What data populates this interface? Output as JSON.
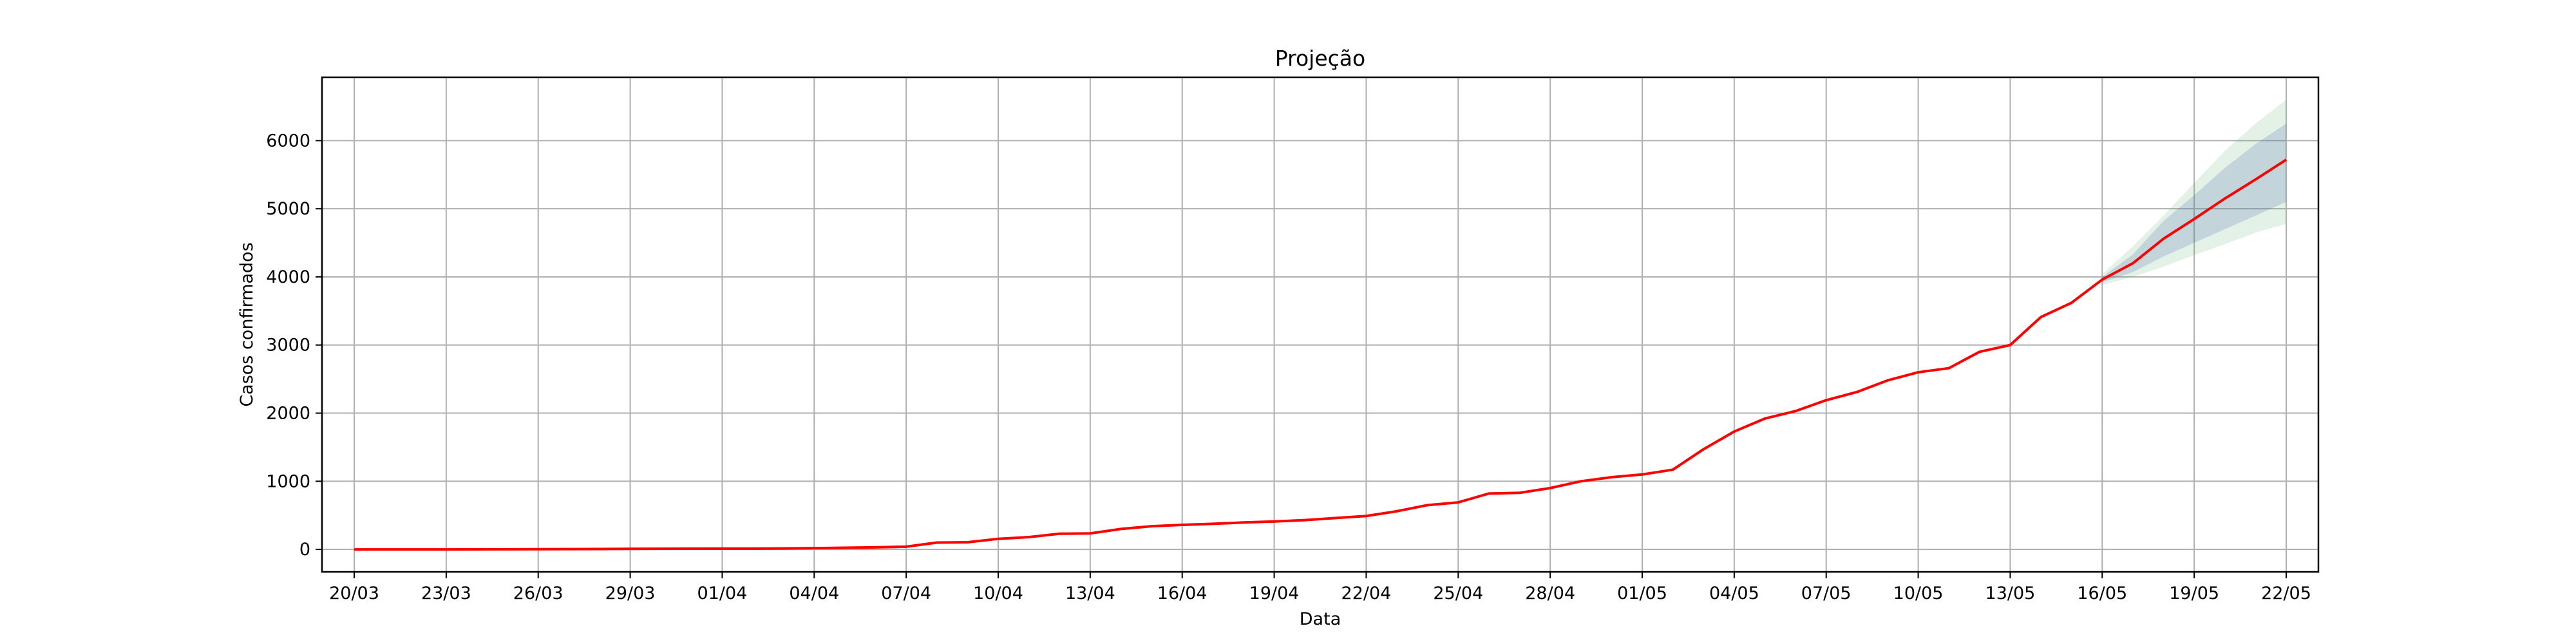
{
  "chart_data": {
    "type": "line",
    "title": "Projeção",
    "xlabel": "Data",
    "ylabel": "Casos confirmados",
    "grid": true,
    "legend": "none",
    "x_range_days": [
      -1.05,
      64.05
    ],
    "ylim": [
      -330,
      6930
    ],
    "x_tick_labels": [
      "20/03",
      "23/03",
      "26/03",
      "29/03",
      "01/04",
      "04/04",
      "07/04",
      "10/04",
      "13/04",
      "16/04",
      "19/04",
      "22/04",
      "25/04",
      "28/04",
      "01/05",
      "04/05",
      "07/05",
      "10/05",
      "13/05",
      "16/05",
      "19/05",
      "22/05"
    ],
    "y_ticks": [
      0,
      1000,
      2000,
      3000,
      4000,
      5000,
      6000
    ],
    "colors": {
      "line": "#ff0000",
      "band_80": "#4c72b0",
      "band_95": "#55a868",
      "grid": "#b0b0b0"
    },
    "series": [
      {
        "dates": [
          "20/03",
          "21/03",
          "22/03",
          "23/03",
          "24/03",
          "25/03",
          "26/03",
          "27/03",
          "28/03",
          "29/03",
          "30/03",
          "31/03",
          "01/04",
          "02/04",
          "03/04",
          "04/04",
          "05/04",
          "06/04",
          "07/04",
          "08/04",
          "09/04",
          "10/04",
          "11/04",
          "12/04",
          "13/04",
          "14/04",
          "15/04",
          "16/04",
          "17/04",
          "18/04",
          "19/04",
          "20/04",
          "21/04",
          "22/04",
          "23/04",
          "24/04",
          "25/04",
          "26/04",
          "27/04",
          "28/04",
          "29/04",
          "30/04",
          "01/05",
          "02/05",
          "03/05",
          "04/05",
          "05/05",
          "06/05",
          "07/05",
          "08/05",
          "09/05",
          "10/05",
          "11/05",
          "12/05",
          "13/05",
          "14/05",
          "15/05",
          "16/05",
          "17/05",
          "18/05",
          "19/05",
          "20/05",
          "21/05",
          "22/05"
        ],
        "values": [
          0,
          0,
          0,
          0,
          1,
          2,
          3,
          4,
          6,
          8,
          9,
          10,
          11,
          12,
          14,
          18,
          25,
          30,
          40,
          100,
          105,
          155,
          180,
          230,
          235,
          300,
          340,
          360,
          375,
          395,
          410,
          430,
          460,
          490,
          560,
          650,
          690,
          820,
          830,
          900,
          1000,
          1060,
          1100,
          1170,
          1470,
          1730,
          1920,
          2030,
          2190,
          2310,
          2480,
          2600,
          2660,
          2900,
          3000,
          3410,
          3620,
          3960,
          4200,
          4560,
          4850,
          5150,
          5430,
          5720
        ]
      }
    ],
    "band_80": {
      "dates": [
        "16/05",
        "17/05",
        "18/05",
        "19/05",
        "20/05",
        "21/05",
        "22/05"
      ],
      "lower": [
        3920,
        4070,
        4300,
        4500,
        4700,
        4900,
        5100
      ],
      "upper": [
        4000,
        4330,
        4820,
        5200,
        5600,
        5950,
        6250
      ]
    },
    "band_95": {
      "dates": [
        "16/05",
        "17/05",
        "18/05",
        "19/05",
        "20/05",
        "21/05",
        "22/05"
      ],
      "lower": [
        3880,
        4000,
        4150,
        4320,
        4480,
        4650,
        4780
      ],
      "upper": [
        4040,
        4450,
        4900,
        5380,
        5850,
        6250,
        6600
      ]
    }
  }
}
